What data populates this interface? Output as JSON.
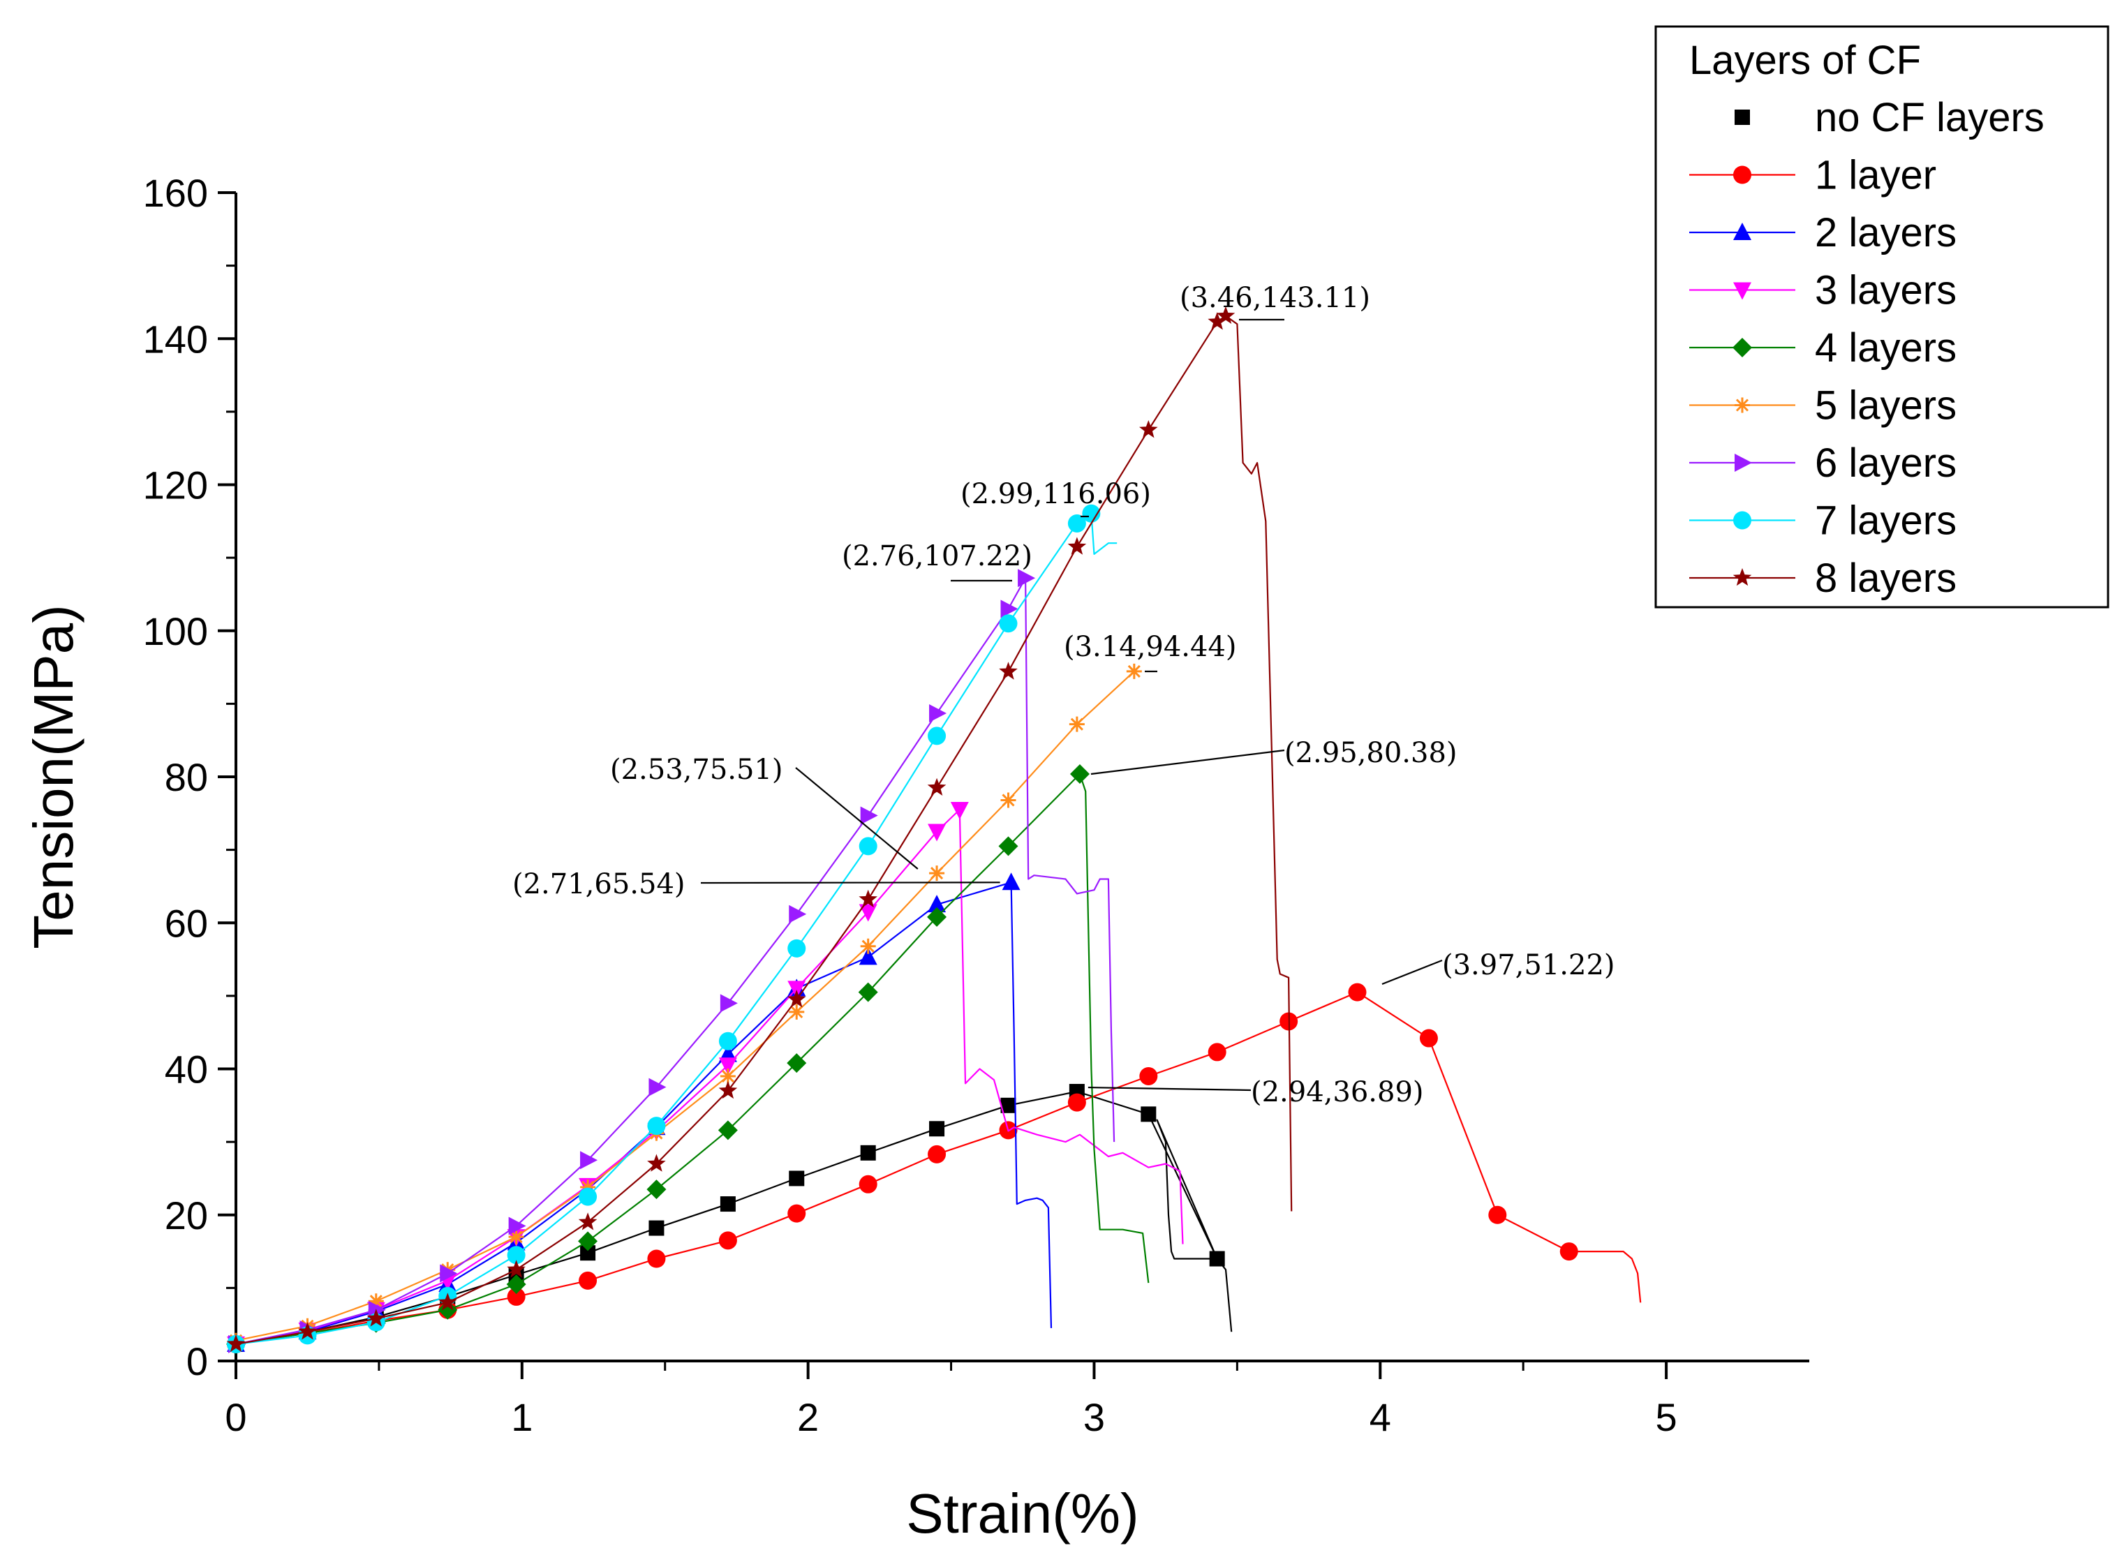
{
  "chart_data": {
    "type": "line",
    "title": "",
    "xlabel": "Strain(%)",
    "ylabel": "Tension(MPa)",
    "xlim": [
      0,
      5.5
    ],
    "ylim": [
      0,
      160
    ],
    "xticks": [
      0,
      1,
      2,
      3,
      4,
      5
    ],
    "yticks": [
      0,
      20,
      40,
      60,
      80,
      100,
      120,
      140,
      160
    ],
    "grid": false,
    "legend": {
      "title": "Layers of CF",
      "placement": "top-right"
    },
    "series": [
      {
        "name": "no CF layers",
        "color": "#000000",
        "marker": "square",
        "x": [
          0,
          0.25,
          0.49,
          0.74,
          0.98,
          1.23,
          1.47,
          1.72,
          1.96,
          2.21,
          2.45,
          2.7,
          2.94,
          3.19,
          3.43
        ],
        "y": [
          2.3,
          4.0,
          6.0,
          8.8,
          11.8,
          14.8,
          18.2,
          21.5,
          25.0,
          28.5,
          31.8,
          35.0,
          36.89,
          33.8,
          14.0
        ],
        "tail_x": [
          3.19,
          3.22,
          3.25,
          3.26,
          3.27,
          3.28,
          3.43,
          3.46,
          3.48
        ],
        "tail_y": [
          33.8,
          33.0,
          30.0,
          20.0,
          15.0,
          14.0,
          14.0,
          12.5,
          4.0
        ]
      },
      {
        "name": "1 layer",
        "color": "#ff0000",
        "marker": "circle",
        "x": [
          0,
          0.25,
          0.49,
          0.74,
          0.98,
          1.23,
          1.47,
          1.72,
          1.96,
          2.21,
          2.45,
          2.7,
          2.94,
          3.19,
          3.43,
          3.68,
          3.92,
          4.17,
          4.41,
          4.66
        ],
        "y": [
          2.3,
          3.8,
          5.5,
          7.0,
          8.8,
          11.0,
          14.0,
          16.5,
          20.2,
          24.2,
          28.3,
          31.6,
          35.4,
          39.0,
          42.3,
          46.5,
          50.5,
          44.2,
          20.0,
          15.0
        ],
        "tail_x": [
          4.66,
          4.73,
          4.85,
          4.88,
          4.9,
          4.91
        ],
        "tail_y": [
          15.0,
          15.0,
          15.0,
          14.0,
          12.0,
          8.0
        ]
      },
      {
        "name": "2 layers",
        "color": "#0000ff",
        "marker": "triangle-up",
        "x": [
          0,
          0.25,
          0.49,
          0.74,
          0.98,
          1.23,
          1.47,
          1.72,
          1.96,
          2.21,
          2.45,
          2.71
        ],
        "y": [
          2.3,
          4.0,
          6.8,
          10.5,
          16.2,
          23.5,
          32.0,
          42.0,
          51.0,
          55.3,
          62.5,
          65.54
        ],
        "tail_x": [
          2.71,
          2.72,
          2.73,
          2.76,
          2.8,
          2.82,
          2.84,
          2.85
        ],
        "tail_y": [
          65.54,
          45.0,
          21.5,
          22.0,
          22.3,
          22.0,
          21.0,
          4.5
        ]
      },
      {
        "name": "3 layers",
        "color": "#ff00ff",
        "marker": "triangle-down",
        "x": [
          0,
          0.25,
          0.49,
          0.74,
          0.98,
          1.23,
          1.47,
          1.72,
          1.96,
          2.21,
          2.45,
          2.53
        ],
        "y": [
          2.3,
          4.2,
          7.0,
          11.0,
          17.0,
          24.0,
          31.5,
          40.5,
          51.0,
          61.5,
          72.5,
          75.51
        ],
        "tail_x": [
          2.53,
          2.55,
          2.6,
          2.65,
          2.7,
          2.72,
          2.8,
          2.9,
          2.95,
          3.05,
          3.1,
          3.19,
          3.25,
          3.3,
          3.31
        ],
        "tail_y": [
          75.51,
          38.0,
          40.0,
          38.5,
          31.5,
          32.0,
          31.0,
          30.0,
          31.0,
          28.0,
          28.5,
          26.5,
          27.0,
          26.0,
          16.0
        ]
      },
      {
        "name": "4 layers",
        "color": "#008000",
        "marker": "diamond",
        "x": [
          0,
          0.25,
          0.49,
          0.74,
          0.98,
          1.23,
          1.47,
          1.72,
          1.96,
          2.21,
          2.45,
          2.7,
          2.95
        ],
        "y": [
          2.3,
          3.8,
          5.2,
          7.0,
          10.5,
          16.4,
          23.5,
          31.6,
          40.8,
          50.5,
          60.8,
          70.5,
          80.38
        ],
        "tail_x": [
          2.95,
          2.97,
          2.99,
          3.0,
          3.02,
          3.1,
          3.17,
          3.19
        ],
        "tail_y": [
          80.38,
          78.0,
          40.0,
          29.0,
          18.0,
          18.0,
          17.5,
          10.7
        ]
      },
      {
        "name": "5 layers",
        "color": "#ff8c1a",
        "marker": "asterisk",
        "x": [
          0,
          0.25,
          0.49,
          0.74,
          0.98,
          1.23,
          1.47,
          1.72,
          1.96,
          2.21,
          2.45,
          2.7,
          2.94,
          3.14
        ],
        "y": [
          2.8,
          4.8,
          8.2,
          12.5,
          17.0,
          23.8,
          31.2,
          39.0,
          47.8,
          56.8,
          66.8,
          76.8,
          87.2,
          94.44
        ],
        "tail_x": [],
        "tail_y": []
      },
      {
        "name": "6 layers",
        "color": "#9b1bff",
        "marker": "triangle-right",
        "x": [
          0,
          0.25,
          0.49,
          0.74,
          0.98,
          1.23,
          1.47,
          1.72,
          1.96,
          2.21,
          2.45,
          2.7,
          2.76
        ],
        "y": [
          2.3,
          4.3,
          7.0,
          12.0,
          18.5,
          27.5,
          37.5,
          49.0,
          61.2,
          74.7,
          88.7,
          103.0,
          107.22
        ],
        "tail_x": [
          2.76,
          2.77,
          2.79,
          2.9,
          2.94,
          3.0,
          3.02,
          3.05,
          3.06,
          3.07
        ],
        "tail_y": [
          107.22,
          66.0,
          66.5,
          66.0,
          64.0,
          64.5,
          66.0,
          66.0,
          45.0,
          30.0
        ]
      },
      {
        "name": "7 layers",
        "color": "#00e5ff",
        "marker": "circle",
        "x": [
          0,
          0.25,
          0.49,
          0.74,
          0.98,
          1.23,
          1.47,
          1.72,
          1.96,
          2.21,
          2.45,
          2.7,
          2.94,
          2.99
        ],
        "y": [
          2.3,
          3.5,
          5.3,
          8.9,
          14.5,
          22.5,
          32.2,
          43.8,
          56.5,
          70.5,
          85.6,
          101.0,
          114.7,
          116.06
        ],
        "tail_x": [
          2.99,
          3.0,
          3.05,
          3.08
        ],
        "tail_y": [
          116.06,
          110.5,
          112.0,
          112.0
        ]
      },
      {
        "name": "8 layers",
        "color": "#8b0000",
        "marker": "star",
        "x": [
          0,
          0.25,
          0.49,
          0.74,
          0.98,
          1.23,
          1.47,
          1.72,
          1.96,
          2.21,
          2.45,
          2.7,
          2.94,
          3.19,
          3.43,
          3.46
        ],
        "y": [
          2.3,
          4.0,
          5.8,
          8.0,
          12.5,
          19.0,
          27.0,
          37.0,
          49.5,
          63.2,
          78.5,
          94.4,
          111.5,
          127.5,
          142.3,
          143.11
        ],
        "tail_x": [
          3.46,
          3.5,
          3.52,
          3.55,
          3.57,
          3.6,
          3.64,
          3.65,
          3.68,
          3.69
        ],
        "tail_y": [
          143.11,
          142.0,
          123.0,
          121.5,
          123.0,
          115.0,
          55.0,
          53.0,
          52.5,
          20.5
        ]
      }
    ],
    "annotations": [
      {
        "text": "(3.46,143.11)",
        "x": 3.46,
        "y": 143.11
      },
      {
        "text": "(2.99,116.06)",
        "x": 2.99,
        "y": 116.06
      },
      {
        "text": "(2.76,107.22)",
        "x": 2.76,
        "y": 107.22
      },
      {
        "text": "(3.14,94.44)",
        "x": 3.14,
        "y": 94.44
      },
      {
        "text": "(2.95,80.38)",
        "x": 2.95,
        "y": 80.38
      },
      {
        "text": "(2.53,75.51)",
        "x": 2.53,
        "y": 75.51
      },
      {
        "text": "(2.71,65.54)",
        "x": 2.71,
        "y": 65.54
      },
      {
        "text": "(3.97,51.22)",
        "x": 3.97,
        "y": 51.22
      },
      {
        "text": "(2.94,36.89)",
        "x": 2.94,
        "y": 36.89
      }
    ]
  }
}
